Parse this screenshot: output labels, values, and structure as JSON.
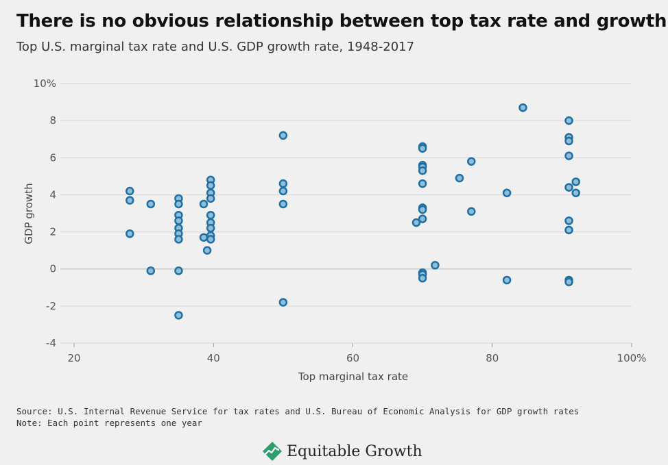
{
  "header": {
    "title": "There is no obvious relationship between top tax rate and growth",
    "subtitle": "Top U.S. marginal tax rate and U.S. GDP growth rate, 1948-2017"
  },
  "footer": {
    "source": "Source: U.S. Internal Revenue Service for tax rates and U.S. Bureau of Economic Analysis for GDP growth rates",
    "note": "Note: Each point represents one year",
    "brand": "Equitable Growth"
  },
  "colors": {
    "point_fill": "#8fbfd8",
    "point_stroke": "#1f6fa3",
    "grid": "#d6d6d6",
    "zero_line": "#c8c8c8"
  },
  "icons": {
    "brand_logo": "growth-chart-leaf-icon"
  },
  "chart_data": {
    "type": "scatter",
    "title": "There is no obvious relationship between top tax rate and growth",
    "subtitle": "Top U.S. marginal tax rate and U.S. GDP growth rate, 1948-2017",
    "xlabel": "Top marginal tax rate",
    "ylabel": "GDP growth",
    "xlim": [
      20,
      100
    ],
    "ylim": [
      -4,
      10
    ],
    "x_ticks": [
      20,
      40,
      60,
      80,
      100
    ],
    "x_tick_labels": [
      "20",
      "40",
      "60",
      "80",
      "100%"
    ],
    "y_ticks": [
      -4,
      -2,
      0,
      2,
      4,
      6,
      8,
      10
    ],
    "y_tick_labels": [
      "-4",
      "-2",
      "0",
      "2",
      "4",
      "6",
      "8",
      "10%"
    ],
    "grid": "horizontal",
    "points": [
      [
        28,
        4.2
      ],
      [
        28,
        3.7
      ],
      [
        28,
        1.9
      ],
      [
        31,
        3.5
      ],
      [
        31,
        -0.1
      ],
      [
        35,
        3.8
      ],
      [
        35,
        3.5
      ],
      [
        35,
        2.9
      ],
      [
        35,
        2.6
      ],
      [
        35,
        2.2
      ],
      [
        35,
        1.9
      ],
      [
        35,
        1.6
      ],
      [
        35,
        -0.1
      ],
      [
        35,
        -2.5
      ],
      [
        38.6,
        3.5
      ],
      [
        38.6,
        1.7
      ],
      [
        39.1,
        1.0
      ],
      [
        39.6,
        4.8
      ],
      [
        39.6,
        4.5
      ],
      [
        39.6,
        4.1
      ],
      [
        39.6,
        3.8
      ],
      [
        39.6,
        2.9
      ],
      [
        39.6,
        2.5
      ],
      [
        39.6,
        2.2
      ],
      [
        39.6,
        1.8
      ],
      [
        39.6,
        1.6
      ],
      [
        50,
        7.2
      ],
      [
        50,
        4.6
      ],
      [
        50,
        4.2
      ],
      [
        50,
        3.5
      ],
      [
        50,
        -1.8
      ],
      [
        69.1,
        2.5
      ],
      [
        70,
        6.6
      ],
      [
        70,
        6.5
      ],
      [
        70,
        5.6
      ],
      [
        70,
        5.5
      ],
      [
        70,
        5.3
      ],
      [
        70,
        4.6
      ],
      [
        70,
        3.3
      ],
      [
        70,
        3.2
      ],
      [
        70,
        2.7
      ],
      [
        70,
        -0.2
      ],
      [
        70,
        -0.3
      ],
      [
        70,
        -0.5
      ],
      [
        71.8,
        0.2
      ],
      [
        75.3,
        4.9
      ],
      [
        77,
        5.8
      ],
      [
        77,
        3.1
      ],
      [
        82.1,
        4.1
      ],
      [
        82.1,
        -0.6
      ],
      [
        84.4,
        8.7
      ],
      [
        91,
        8.0
      ],
      [
        91,
        7.1
      ],
      [
        91,
        6.9
      ],
      [
        91,
        6.1
      ],
      [
        91,
        4.4
      ],
      [
        91,
        2.6
      ],
      [
        91,
        2.1
      ],
      [
        91,
        -0.6
      ],
      [
        91,
        -0.7
      ],
      [
        92,
        4.7
      ],
      [
        92,
        4.1
      ]
    ]
  }
}
